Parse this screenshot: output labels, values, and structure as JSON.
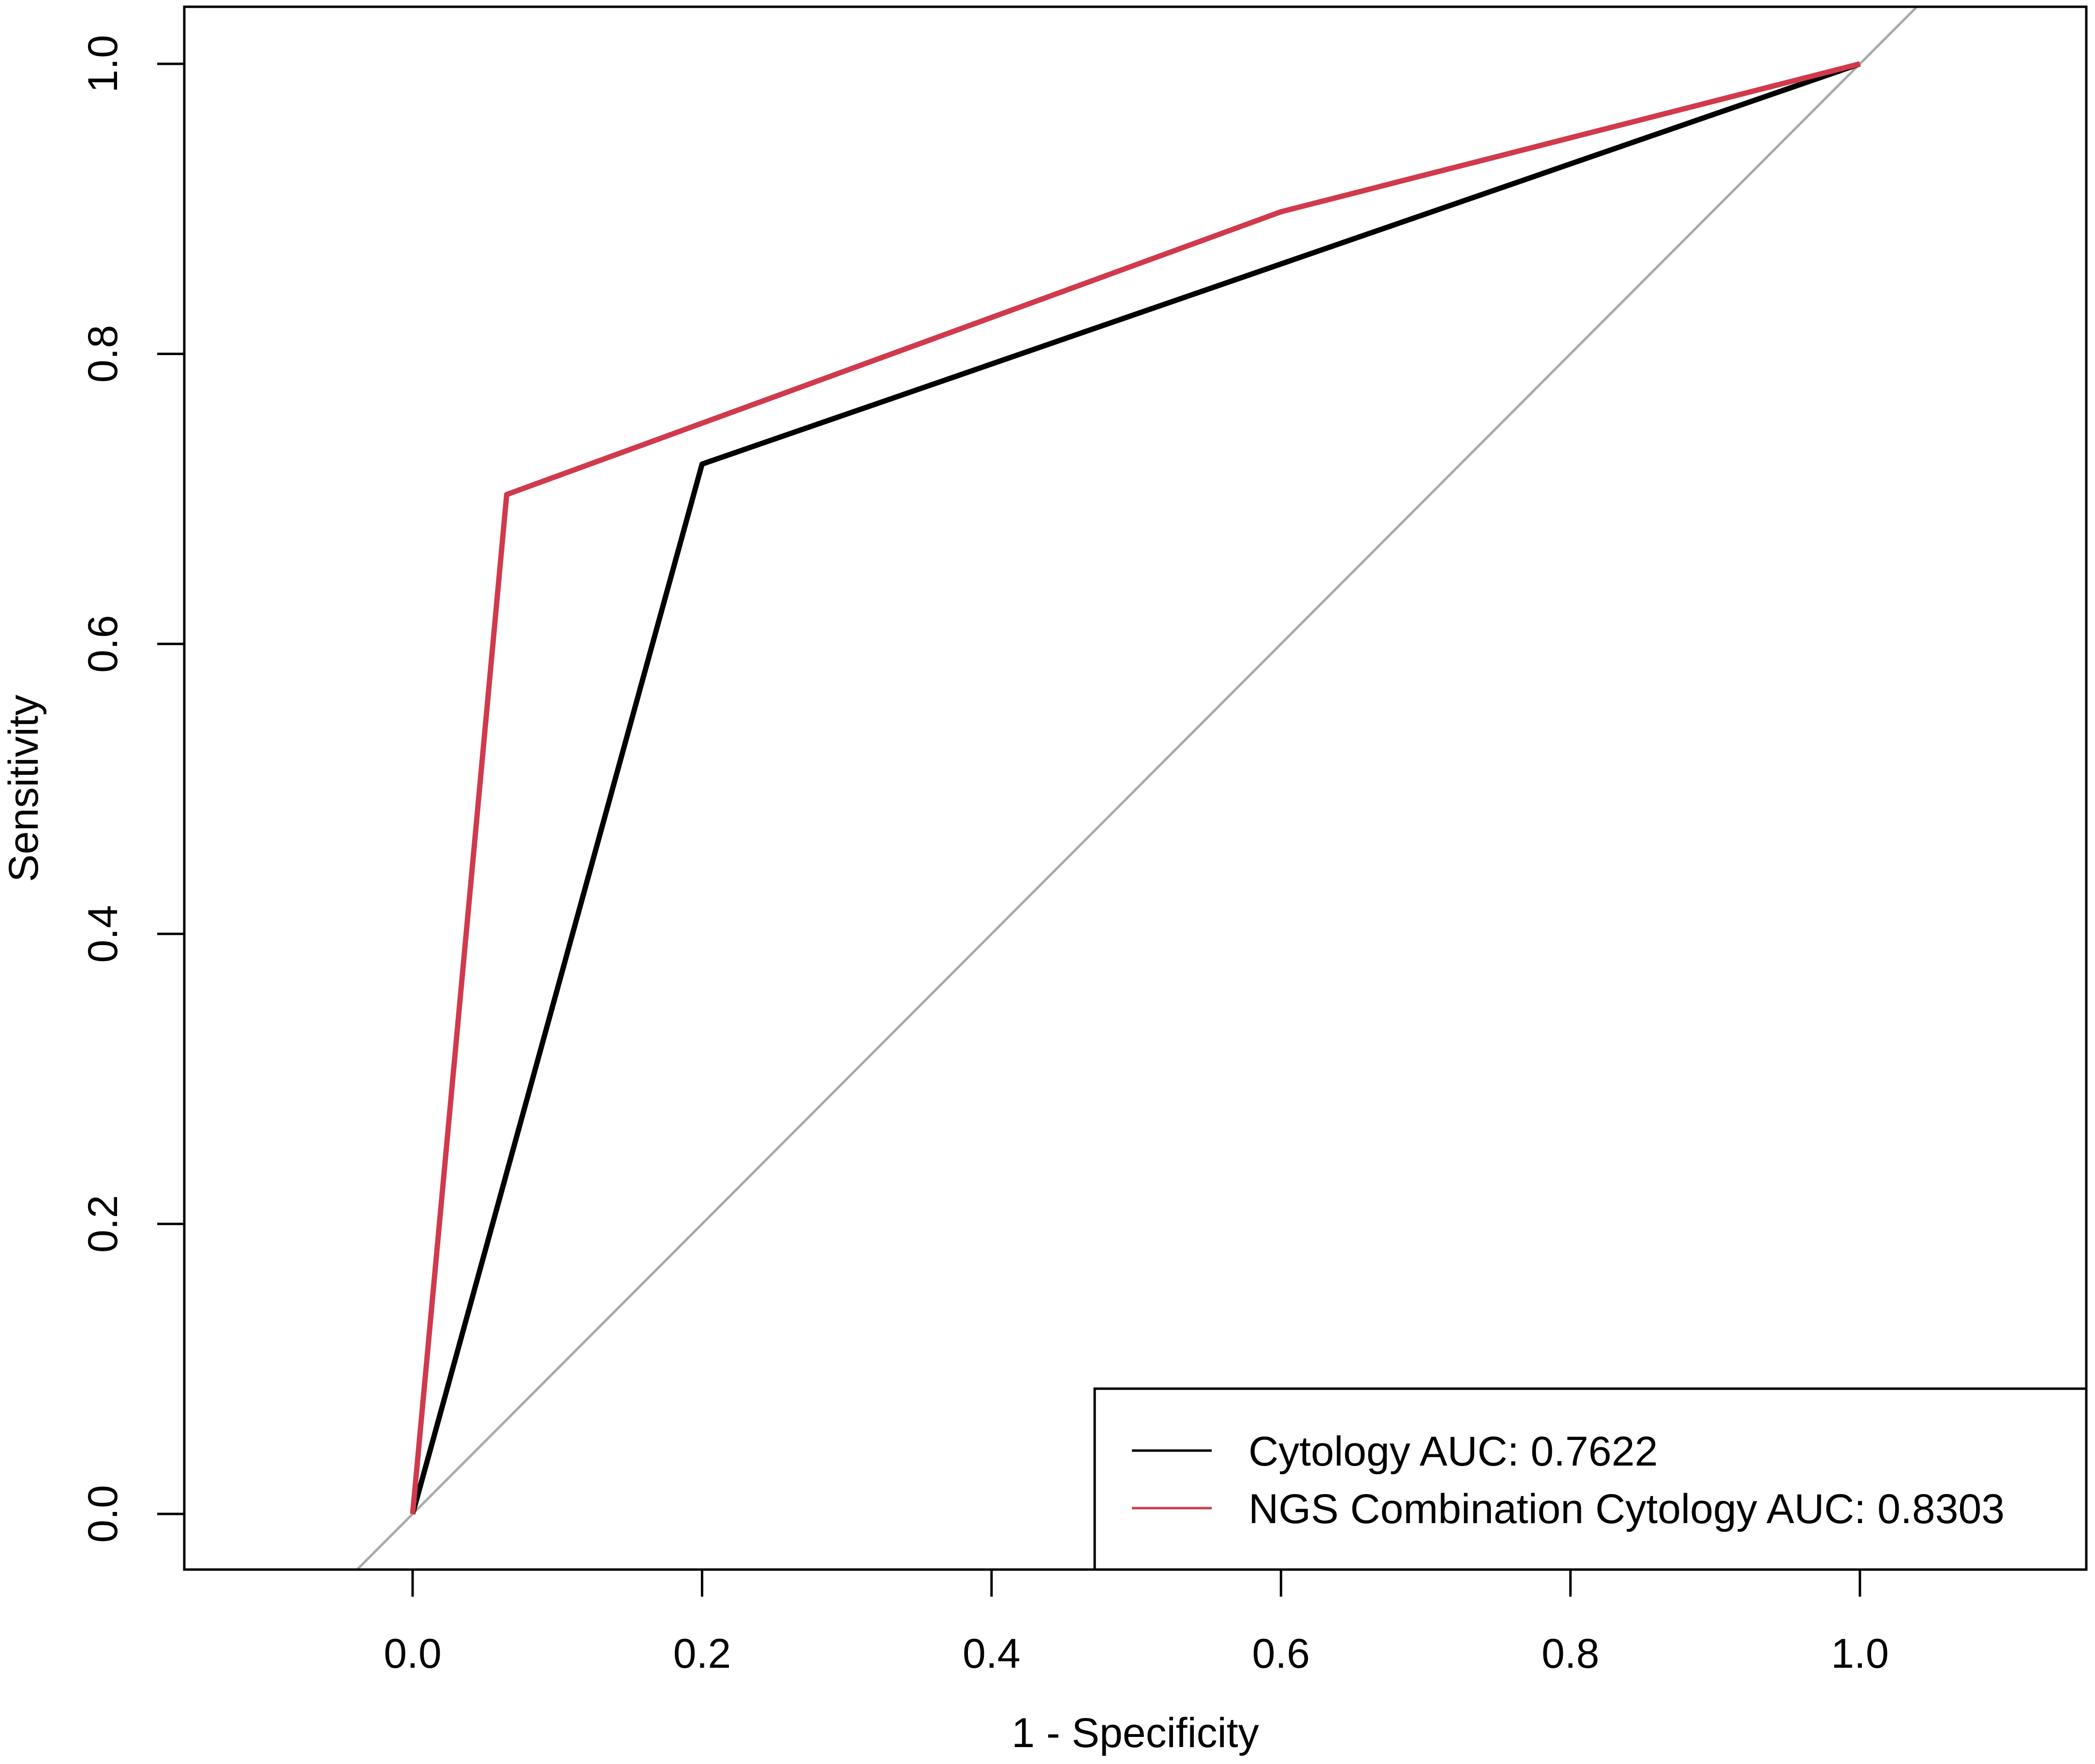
{
  "chart_data": {
    "type": "line",
    "title": "",
    "xlabel": "1 - Specificity",
    "ylabel": "Sensitivity",
    "xlim": [
      -0.16,
      1.16
    ],
    "ylim": [
      -0.04,
      1.04
    ],
    "xticks": [
      0.0,
      0.2,
      0.4,
      0.6,
      0.8,
      1.0
    ],
    "xtick_labels": [
      "0.0",
      "0.2",
      "0.4",
      "0.6",
      "0.8",
      "1.0"
    ],
    "yticks": [
      0.0,
      0.2,
      0.4,
      0.6,
      0.8,
      1.0
    ],
    "ytick_labels": [
      "0.0",
      "0.2",
      "0.4",
      "0.6",
      "0.8",
      "1.0"
    ],
    "grid": false,
    "legend_position": "bottom-right",
    "reference_line": {
      "x": [
        0,
        1
      ],
      "y": [
        0,
        1
      ],
      "color": "#a9a9a9"
    },
    "series": [
      {
        "name": "Cytology AUC: 0.7622",
        "color": "#000000",
        "x": [
          0.0,
          0.2,
          1.0
        ],
        "y": [
          0.0,
          0.724,
          1.0
        ]
      },
      {
        "name": "NGS Combination Cytology AUC: 0.8303",
        "color": "#d03a4c",
        "x": [
          0.0,
          0.065,
          0.6,
          1.0
        ],
        "y": [
          0.0,
          0.703,
          0.898,
          1.0
        ]
      }
    ]
  }
}
